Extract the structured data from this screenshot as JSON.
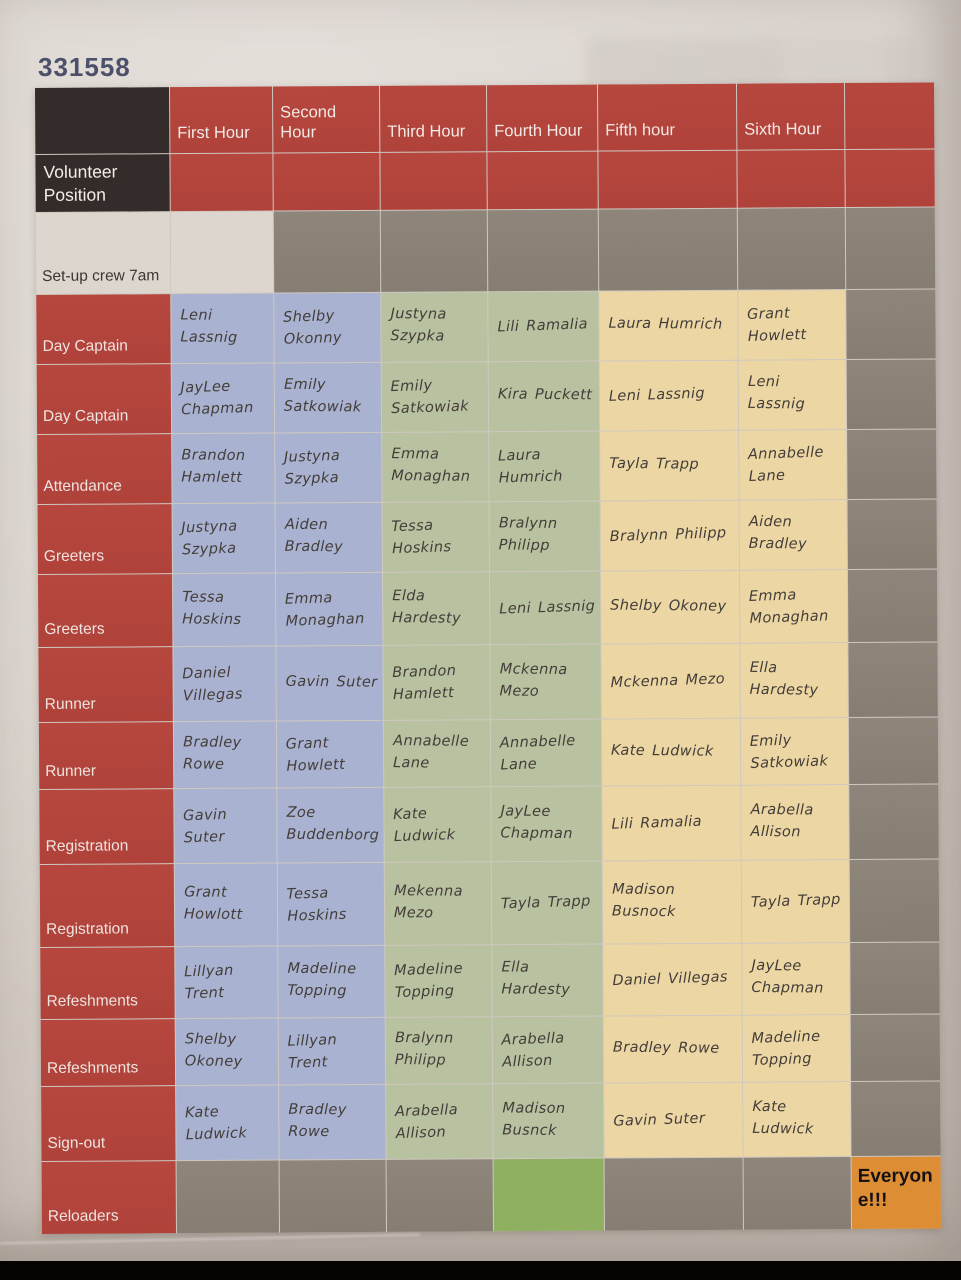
{
  "page_id": "331558",
  "palette": {
    "header_red": "#b2453d",
    "header_black": "#332c2a",
    "unused_gray": "#8a8177",
    "first_second_blue": "#a9b3d1",
    "third_fourth_green": "#b8c2a0",
    "fifth_sixth_tan": "#ecd6a4",
    "reloaders_green": "#8fb061",
    "everyone_orange": "#dd8e35",
    "paper": "#d9d2cb",
    "page_number_blue": "#4c506a",
    "ink": "#433d39"
  },
  "schedule": {
    "column_styles": [
      "blue",
      "blue",
      "green",
      "green",
      "tan",
      "tan",
      "gray"
    ],
    "rows": [
      {
        "key": "hours-header",
        "style": "hours",
        "label": "",
        "cells": [
          "First Hour",
          "Second Hour",
          "Third Hour",
          "Fourth Hour",
          "Fifth hour",
          "Sixth Hour",
          ""
        ]
      },
      {
        "key": "volunteer-position",
        "style": "position",
        "label": "Volunteer Position",
        "cells": [
          "",
          "",
          "",
          "",
          "",
          "",
          ""
        ]
      },
      {
        "key": "setup-crew",
        "style": "setup",
        "label": "Set-up crew 7am",
        "cells": [
          "",
          "",
          "",
          "",
          "",
          "",
          ""
        ]
      },
      {
        "key": "day-captain-1",
        "style": "names",
        "label": "Day Captain",
        "cells": [
          "Leni Lassnig",
          "Shelby Okonny",
          "Justyna Szypka",
          "Lili Ramalia",
          "Laura Humrich",
          "Grant Howlett",
          ""
        ]
      },
      {
        "key": "day-captain-2",
        "style": "names",
        "label": "Day Captain",
        "cells": [
          "JayLee Chapman",
          "Emily Satkowiak",
          "Emily Satkowiak",
          "Kira Puckett",
          "Leni Lassnig",
          "Leni Lassnig",
          ""
        ]
      },
      {
        "key": "attendance",
        "style": "names",
        "label": "Attendance",
        "cells": [
          "Brandon Hamlett",
          "Justyna Szypka",
          "Emma Monaghan",
          "Laura Humrich",
          "Tayla Trapp",
          "Annabelle Lane",
          ""
        ]
      },
      {
        "key": "greeters-1",
        "style": "names",
        "label": "Greeters",
        "cells": [
          "Justyna Szypka",
          "Aiden Bradley",
          "Tessa Hoskins",
          "Bralynn Philipp",
          "Bralynn Philipp",
          "Aiden Bradley",
          ""
        ]
      },
      {
        "key": "greeters-2",
        "style": "names",
        "label": "Greeters",
        "cells": [
          "Tessa Hoskins",
          "Emma Monaghan",
          "Elda Hardesty",
          "Leni Lassnig",
          "Shelby Okoney",
          "Emma Monaghan",
          ""
        ]
      },
      {
        "key": "runner-1",
        "style": "names",
        "label": "Runner",
        "cells": [
          "Daniel Villegas",
          "Gavin Suter",
          "Brandon Hamlett",
          "Mckenna Mezo",
          "Mckenna Mezo",
          "Ella Hardesty",
          ""
        ]
      },
      {
        "key": "runner-2",
        "style": "names",
        "label": "Runner",
        "cells": [
          "Bradley Rowe",
          "Grant Howlett",
          "Annabelle Lane",
          "Annabelle Lane",
          "Kate Ludwick",
          "Emily Satkowiak",
          ""
        ]
      },
      {
        "key": "registration-1",
        "style": "names",
        "label": "Registration",
        "cells": [
          "Gavin Suter",
          "Zoe Buddenborg",
          "Kate Ludwick",
          "JayLee Chapman",
          "Lili Ramalia",
          "Arabella Allison",
          ""
        ]
      },
      {
        "key": "registration-2",
        "style": "names",
        "label": "Registration",
        "cells": [
          "Grant Howlott",
          "Tessa Hoskins",
          "Mekenna Mezo",
          "Tayla Trapp",
          "Madison Busnock",
          "Tayla Trapp",
          ""
        ]
      },
      {
        "key": "refeshments-1",
        "style": "names",
        "label": "Refeshments",
        "cells": [
          "Lillyan Trent",
          "Madeline Topping",
          "Madeline Topping",
          "Ella Hardesty",
          "Daniel Villegas",
          "JayLee Chapman",
          ""
        ]
      },
      {
        "key": "refeshments-2",
        "style": "names",
        "label": "Refeshments",
        "cells": [
          "Shelby Okoney",
          "Lillyan Trent",
          "Bralynn Philipp",
          "Arabella Allison",
          "Bradley Rowe",
          "Madeline Topping",
          ""
        ]
      },
      {
        "key": "sign-out",
        "style": "names",
        "label": "Sign-out",
        "cells": [
          "Kate Ludwick",
          "Bradley Rowe",
          "Arabella Allison",
          "Madison Busnck",
          "Gavin Suter",
          "Kate Ludwick",
          ""
        ]
      },
      {
        "key": "reloaders",
        "style": "reloaders",
        "label": "Reloaders",
        "cells": [
          "",
          "",
          "",
          "",
          "",
          "",
          "Everyone!!!"
        ]
      }
    ]
  }
}
